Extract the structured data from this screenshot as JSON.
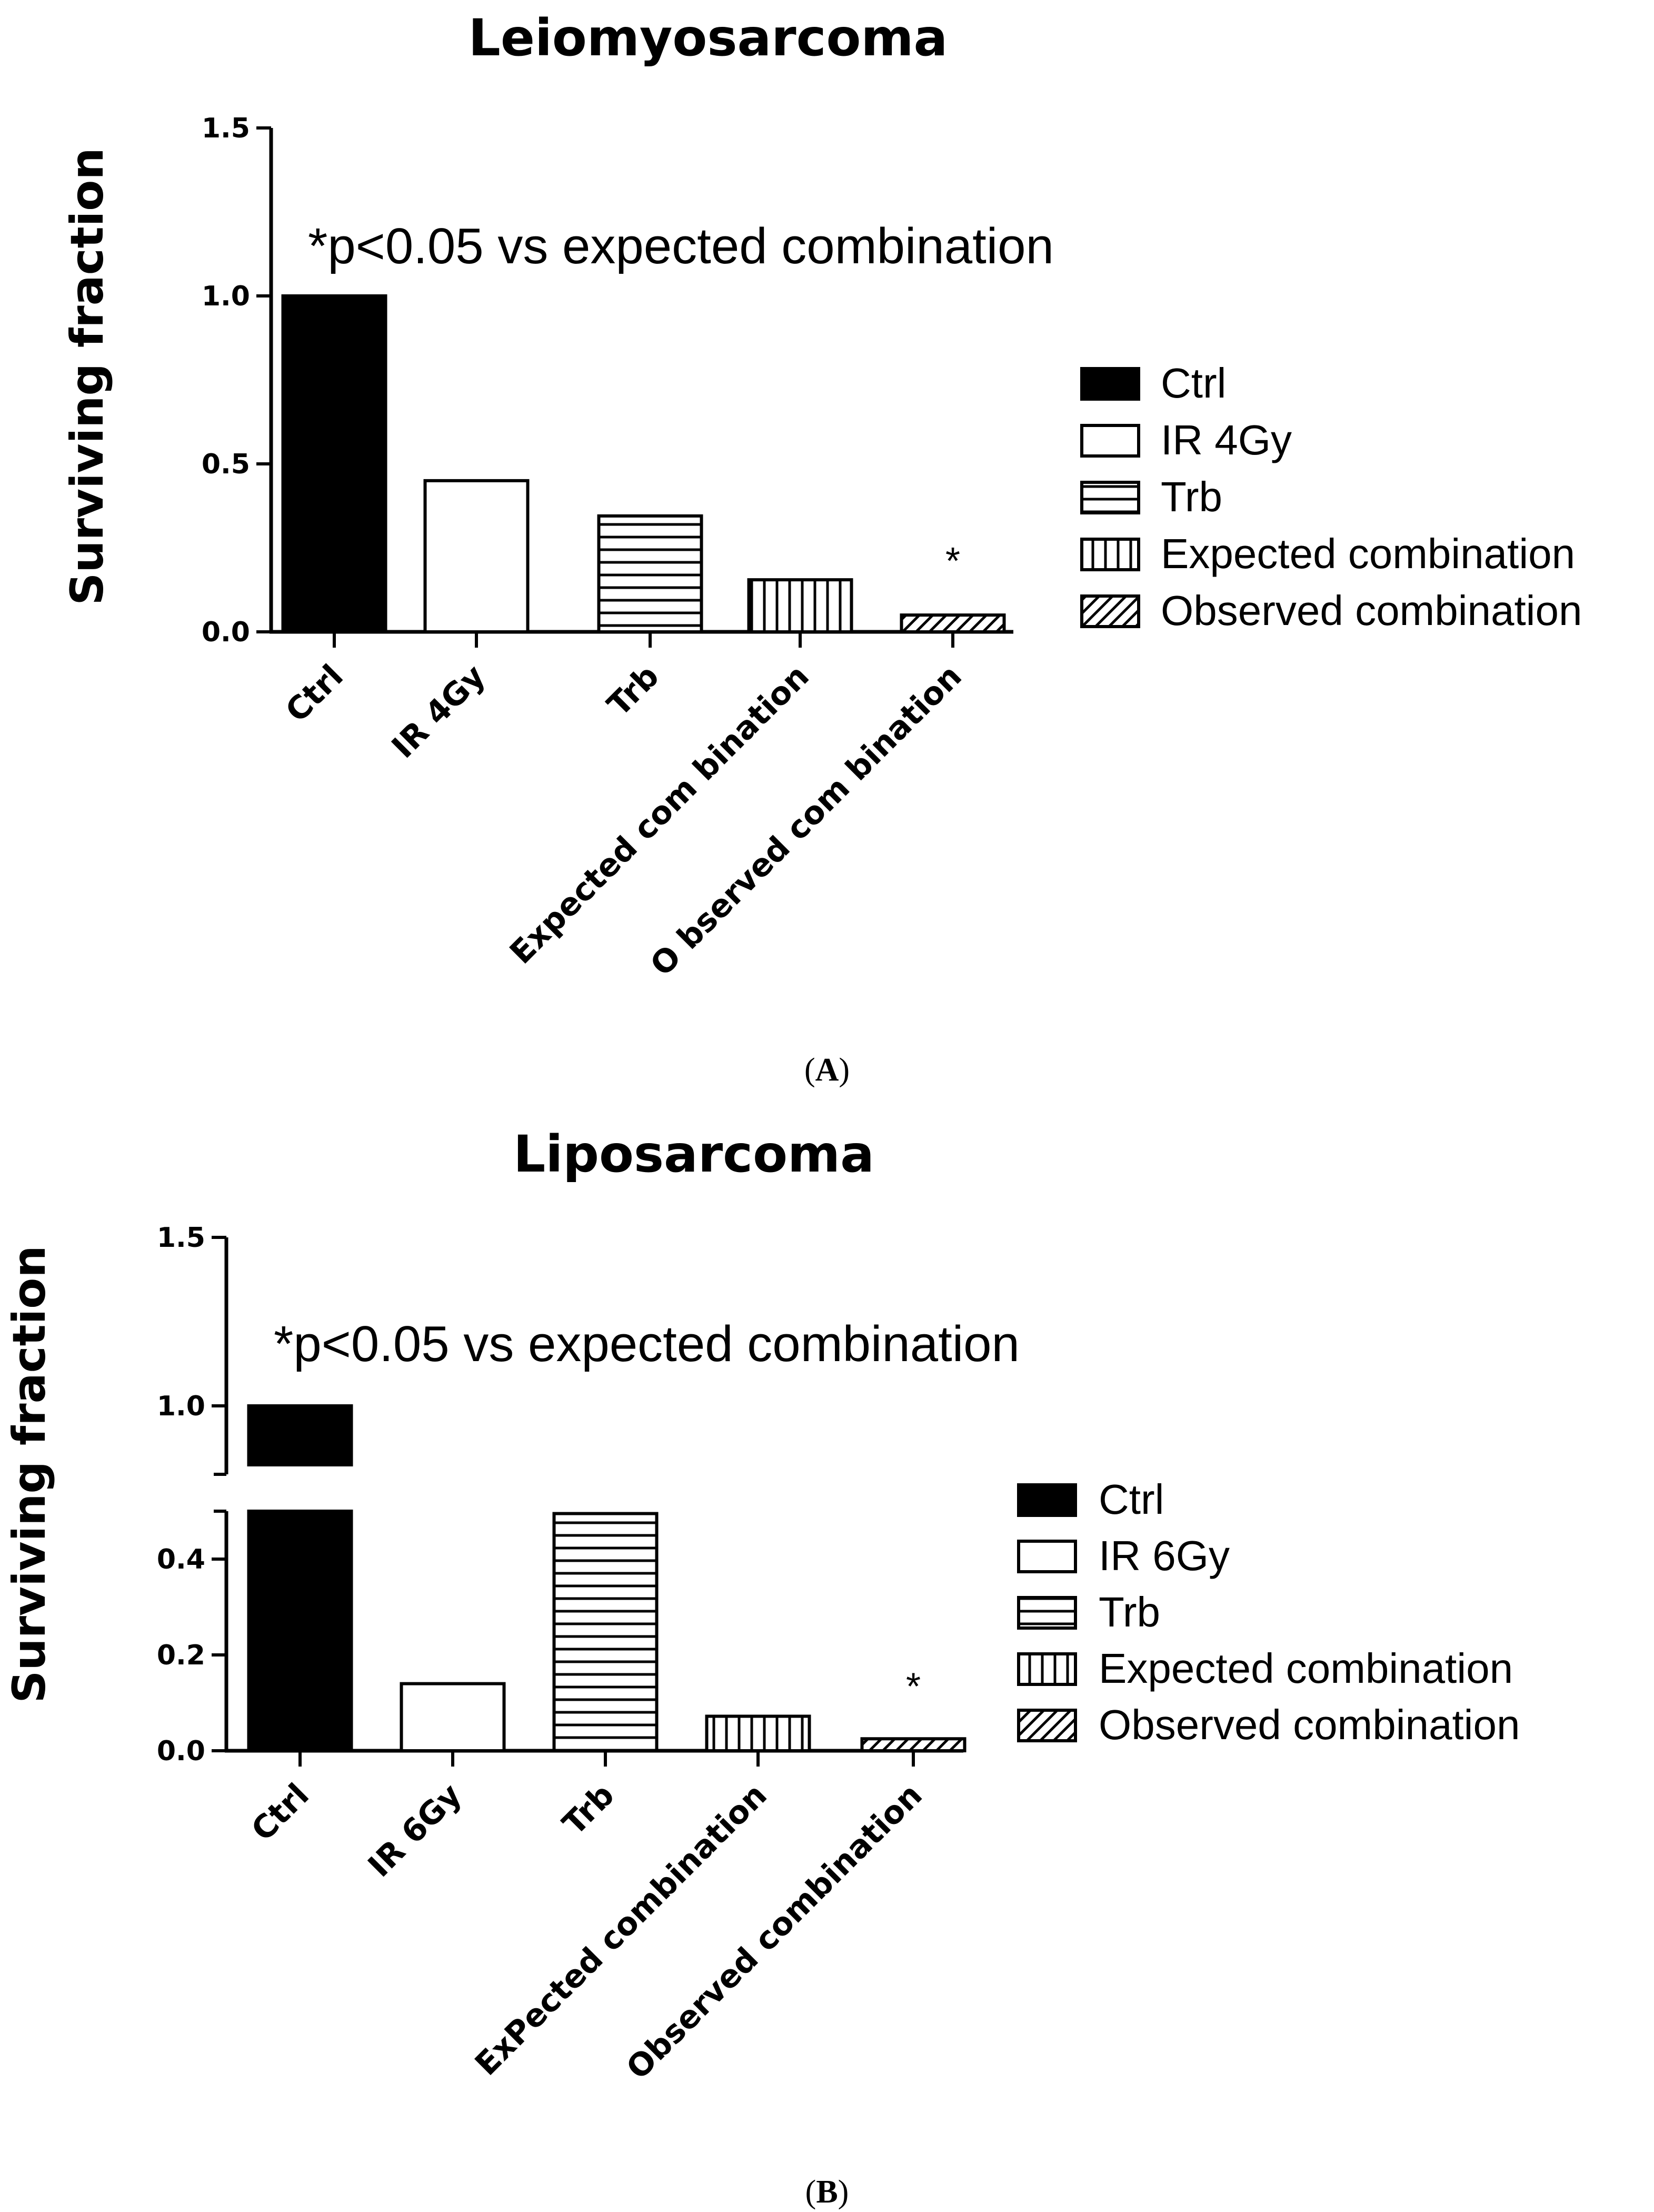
{
  "chart_data": [
    {
      "panel": "A",
      "type": "bar",
      "title": "Leiomyosarcoma",
      "xlabel": "",
      "ylabel": "Surviving fraction",
      "ylim": [
        0,
        1.5
      ],
      "yticks": [
        "0.0",
        "0.5",
        "1.0",
        "1.5"
      ],
      "categories": [
        "Ctrl",
        "IR 4Gy",
        "Trb",
        "Expected com bination",
        "O bserved com bination"
      ],
      "values": [
        1.0,
        0.45,
        0.345,
        0.155,
        0.05
      ],
      "patterns": [
        "solid",
        "empty",
        "horizontal",
        "vertical",
        "diagonal"
      ],
      "annotation": "*p<0.05 vs expected combination",
      "significance_marker": "*",
      "significant_category": "O bserved com bination",
      "legend_position": "right",
      "legend": [
        "Ctrl",
        "IR 4Gy",
        "Trb",
        "Expected combination",
        "Observed combination"
      ],
      "grid": false
    },
    {
      "panel": "B",
      "type": "bar",
      "title": "Liposarcoma",
      "xlabel": "",
      "ylabel": "Surviving fraction",
      "ylim": [
        0,
        1.5
      ],
      "axis_break": [
        0.5,
        0.9
      ],
      "yticks_lower": [
        "0.0",
        "0.2",
        "0.4"
      ],
      "yticks_upper": [
        "1.0",
        "1.5"
      ],
      "categories": [
        "Ctrl",
        "IR 6Gy",
        "Trb",
        "ExPected combination",
        "Observed combination"
      ],
      "values": [
        1.0,
        0.14,
        0.495,
        0.072,
        0.025
      ],
      "patterns": [
        "solid",
        "empty",
        "horizontal",
        "vertical",
        "diagonal"
      ],
      "annotation": "*p<0.05 vs expected combination",
      "significance_marker": "*",
      "significant_category": "Observed combination",
      "legend_position": "right",
      "legend": [
        "Ctrl",
        "IR 6Gy",
        "Trb",
        "Expected combination",
        "Observed combination"
      ],
      "grid": false
    }
  ],
  "captions": {
    "a": {
      "open": "(",
      "letter": "A",
      "close": ")"
    },
    "b": {
      "open": "(",
      "letter": "B",
      "close": ")"
    }
  },
  "colors": {
    "bar_stroke": "#000000",
    "bar_fill": "#000000",
    "background": "#ffffff"
  }
}
